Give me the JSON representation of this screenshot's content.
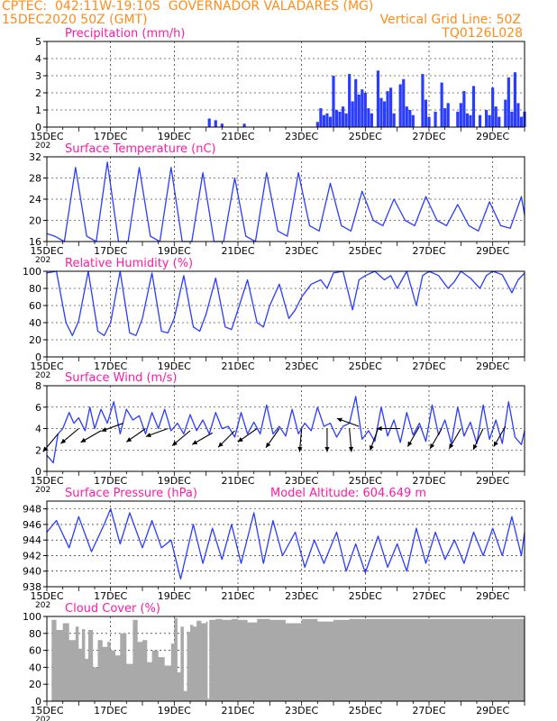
{
  "header": {
    "line1": "CPTEC:  042:11W-19:10S  GOVERNADOR VALADARES (MG)",
    "line2": "15DEC2020 50Z (GMT)",
    "grid_note": "Vertical Grid Line: 50Z",
    "code": "TQ0126L028"
  },
  "colors": {
    "header": "#ff8c1a",
    "panel_title": "#ff1aa6",
    "series": "#2a3cff",
    "cloud_fill": "#a9a9a9",
    "axis": "#000000",
    "grid": "#000000"
  },
  "x_axis": {
    "start_date": "15DEC",
    "ticks": [
      "15DEC",
      "17DEC",
      "19DEC",
      "21DEC",
      "23DEC",
      "25DEC",
      "27DEC",
      "29DEC"
    ],
    "tick_under": "202"
  },
  "chart_data": [
    {
      "id": "precip",
      "type": "bar",
      "title": "Precipitation (mm/h)",
      "ylim": [
        0,
        5
      ],
      "yticks": [
        0,
        1,
        2,
        3,
        4,
        5
      ],
      "series": [
        {
          "values": [
            [
              5.1,
              0.5
            ],
            [
              5.3,
              0.4
            ],
            [
              5.5,
              0.2
            ],
            [
              6.2,
              0.2
            ],
            [
              8.5,
              0.3
            ],
            [
              8.6,
              1.1
            ],
            [
              8.7,
              0.7
            ],
            [
              8.8,
              0.8
            ],
            [
              8.9,
              0.6
            ],
            [
              9.0,
              3.0
            ],
            [
              9.1,
              1.0
            ],
            [
              9.2,
              0.9
            ],
            [
              9.3,
              1.2
            ],
            [
              9.4,
              0.8
            ],
            [
              9.5,
              3.1
            ],
            [
              9.6,
              1.5
            ],
            [
              9.7,
              2.8
            ],
            [
              9.8,
              1.9
            ],
            [
              9.9,
              2.2
            ],
            [
              10.0,
              2.0
            ],
            [
              10.1,
              1.1
            ],
            [
              10.2,
              0.8
            ],
            [
              10.4,
              3.3
            ],
            [
              10.5,
              1.7
            ],
            [
              10.6,
              1.5
            ],
            [
              10.7,
              2.1
            ],
            [
              10.8,
              2.3
            ],
            [
              10.9,
              0.8
            ],
            [
              11.1,
              2.5
            ],
            [
              11.2,
              2.8
            ],
            [
              11.3,
              1.2
            ],
            [
              11.4,
              1.0
            ],
            [
              11.5,
              0.7
            ],
            [
              11.8,
              3.1
            ],
            [
              11.9,
              1.6
            ],
            [
              12.0,
              0.6
            ],
            [
              12.2,
              0.9
            ],
            [
              12.4,
              2.6
            ],
            [
              12.5,
              1.1
            ],
            [
              12.6,
              1.4
            ],
            [
              12.9,
              0.9
            ],
            [
              13.0,
              1.4
            ],
            [
              13.1,
              2.1
            ],
            [
              13.2,
              0.8
            ],
            [
              13.3,
              0.7
            ],
            [
              13.4,
              2.4
            ],
            [
              13.6,
              0.7
            ],
            [
              13.8,
              1.0
            ],
            [
              13.9,
              0.7
            ],
            [
              14.0,
              2.3
            ],
            [
              14.1,
              1.2
            ],
            [
              14.2,
              0.6
            ],
            [
              14.4,
              1.6
            ],
            [
              14.5,
              2.9
            ],
            [
              14.6,
              0.9
            ],
            [
              14.7,
              3.2
            ],
            [
              14.8,
              1.4
            ],
            [
              14.9,
              0.6
            ],
            [
              15.0,
              0.9
            ]
          ]
        }
      ]
    },
    {
      "id": "temp",
      "type": "line",
      "title": "Surface Temperature (nC)",
      "ylim": [
        16,
        32
      ],
      "yticks": [
        16,
        20,
        24,
        28,
        32
      ],
      "series": [
        {
          "days": [
            0,
            0.25,
            0.55,
            0.9,
            1.25,
            1.55,
            1.9,
            2.25,
            2.55,
            2.9,
            3.25,
            3.55,
            3.9,
            4.25,
            4.55,
            4.9,
            5.25,
            5.55,
            5.9,
            6.25,
            6.55,
            6.9,
            7.25,
            7.55,
            7.9,
            8.25,
            8.55,
            8.9,
            9.25,
            9.55,
            9.9,
            10.25,
            10.55,
            10.9,
            11.25,
            11.55,
            11.9,
            12.25,
            12.55,
            12.9,
            13.25,
            13.55,
            13.9,
            14.25,
            14.55,
            14.9,
            15.0
          ],
          "values": [
            17.5,
            17,
            16,
            30,
            17,
            16,
            31,
            16,
            16,
            30,
            17,
            16,
            30,
            16,
            16,
            29,
            16,
            16,
            28,
            17,
            16,
            29,
            18,
            17,
            29,
            19,
            18,
            27,
            19,
            18,
            25.5,
            20,
            19,
            24,
            20,
            19,
            24.5,
            20,
            19,
            23,
            19,
            18,
            23.5,
            19,
            18.5,
            24.5,
            21
          ]
        }
      ]
    },
    {
      "id": "humidity",
      "type": "line",
      "title": "Relative Humidity (%)",
      "ylim": [
        0,
        100
      ],
      "yticks": [
        0,
        20,
        40,
        60,
        80,
        100
      ],
      "series": [
        {
          "days": [
            0,
            0.3,
            0.6,
            0.8,
            1.0,
            1.3,
            1.6,
            1.8,
            2.0,
            2.3,
            2.6,
            2.8,
            3.0,
            3.3,
            3.6,
            3.8,
            4.0,
            4.3,
            4.6,
            4.8,
            5.0,
            5.3,
            5.6,
            5.8,
            6.0,
            6.3,
            6.6,
            6.8,
            7.0,
            7.3,
            7.6,
            7.8,
            8.0,
            8.3,
            8.6,
            8.8,
            9.0,
            9.3,
            9.6,
            9.8,
            10.0,
            10.3,
            10.6,
            10.8,
            11.0,
            11.3,
            11.6,
            11.8,
            12.0,
            12.3,
            12.6,
            12.8,
            13.0,
            13.3,
            13.6,
            13.8,
            14.0,
            14.3,
            14.6,
            14.8,
            15.0
          ],
          "values": [
            98,
            100,
            40,
            25,
            42,
            100,
            30,
            25,
            40,
            100,
            28,
            25,
            45,
            98,
            30,
            28,
            45,
            95,
            35,
            30,
            50,
            92,
            35,
            32,
            55,
            90,
            40,
            35,
            60,
            85,
            45,
            55,
            70,
            85,
            90,
            80,
            98,
            100,
            55,
            90,
            95,
            100,
            90,
            95,
            80,
            100,
            60,
            95,
            100,
            95,
            80,
            88,
            100,
            92,
            80,
            95,
            100,
            96,
            75,
            90,
            98
          ]
        }
      ]
    },
    {
      "id": "wind",
      "type": "line",
      "title": "Surface Wind (m/s)",
      "ylim": [
        0,
        8
      ],
      "yticks": [
        0,
        2,
        4,
        6,
        8
      ],
      "series": [
        {
          "days": [
            0,
            0.2,
            0.35,
            0.5,
            0.7,
            0.85,
            1.0,
            1.2,
            1.35,
            1.5,
            1.7,
            1.9,
            2.1,
            2.3,
            2.5,
            2.7,
            2.9,
            3.1,
            3.3,
            3.5,
            3.7,
            3.9,
            4.1,
            4.3,
            4.5,
            4.7,
            4.9,
            5.1,
            5.3,
            5.5,
            5.7,
            5.9,
            6.1,
            6.3,
            6.5,
            6.7,
            6.9,
            7.1,
            7.3,
            7.5,
            7.7,
            7.9,
            8.1,
            8.3,
            8.5,
            8.7,
            8.9,
            9.1,
            9.3,
            9.5,
            9.7,
            9.9,
            10.1,
            10.3,
            10.5,
            10.7,
            10.9,
            11.1,
            11.3,
            11.5,
            11.7,
            11.9,
            12.1,
            12.3,
            12.5,
            12.7,
            12.9,
            13.1,
            13.3,
            13.5,
            13.7,
            13.9,
            14.1,
            14.3,
            14.5,
            14.7,
            14.9,
            15.0
          ],
          "values": [
            1.5,
            0.8,
            3.5,
            4,
            5.5,
            4.5,
            5,
            3.8,
            6,
            4,
            5.8,
            4.5,
            6.5,
            3.5,
            5.8,
            4.8,
            5.2,
            3.5,
            5.5,
            4,
            5.8,
            3.8,
            4.5,
            3.5,
            5.3,
            3.8,
            4.8,
            3.5,
            5.5,
            4,
            4.2,
            3.2,
            5.5,
            3.5,
            4.6,
            3.5,
            6.2,
            3.5,
            4.2,
            3.3,
            5.8,
            3.5,
            4.5,
            3.8,
            6,
            4.2,
            4.5,
            3.2,
            4.2,
            4.5,
            7,
            3,
            3.8,
            2.8,
            6,
            3.3,
            4.8,
            2.7,
            5.5,
            3.4,
            4.5,
            2.8,
            6.2,
            3.4,
            4.8,
            2.6,
            6,
            3.3,
            4.6,
            2.6,
            6.2,
            3,
            4.8,
            2.6,
            6.5,
            3.2,
            2.5,
            3.8
          ]
        }
      ],
      "vectors": [
        {
          "day": 0.35,
          "mag": 3.5,
          "dir": 220
        },
        {
          "day": 1.0,
          "mag": 4.0,
          "dir": 230
        },
        {
          "day": 1.7,
          "mag": 3.8,
          "dir": 240
        },
        {
          "day": 2.4,
          "mag": 4.5,
          "dir": 250
        },
        {
          "day": 3.1,
          "mag": 4.0,
          "dir": 235
        },
        {
          "day": 3.8,
          "mag": 4.0,
          "dir": 250
        },
        {
          "day": 4.5,
          "mag": 3.8,
          "dir": 230
        },
        {
          "day": 5.2,
          "mag": 3.6,
          "dir": 240
        },
        {
          "day": 5.9,
          "mag": 3.8,
          "dir": 225
        },
        {
          "day": 6.6,
          "mag": 4.0,
          "dir": 235
        },
        {
          "day": 7.3,
          "mag": 4.0,
          "dir": 215
        },
        {
          "day": 8.0,
          "mag": 4.0,
          "dir": 185
        },
        {
          "day": 8.8,
          "mag": 4.0,
          "dir": 180
        },
        {
          "day": 9.5,
          "mag": 4.0,
          "dir": 175
        },
        {
          "day": 9.8,
          "mag": 4.2,
          "dir": 290
        },
        {
          "day": 10.4,
          "mag": 4.0,
          "dir": 200
        },
        {
          "day": 11.1,
          "mag": 4.0,
          "dir": 270
        },
        {
          "day": 11.7,
          "mag": 4.2,
          "dir": 210
        },
        {
          "day": 12.4,
          "mag": 4.0,
          "dir": 210
        },
        {
          "day": 13.0,
          "mag": 4.0,
          "dir": 210
        },
        {
          "day": 13.7,
          "mag": 4.0,
          "dir": 205
        },
        {
          "day": 14.4,
          "mag": 4.2,
          "dir": 210
        }
      ]
    },
    {
      "id": "pressure",
      "type": "line",
      "title": "Surface Pressure (hPa)",
      "subtitle": "Model Altitude: 604.649  m",
      "ylim": [
        938,
        949
      ],
      "yticks": [
        938,
        940,
        942,
        944,
        946,
        948
      ],
      "series": [
        {
          "days": [
            0,
            0.3,
            0.7,
            1.0,
            1.4,
            1.8,
            2.0,
            2.3,
            2.6,
            3.0,
            3.3,
            3.6,
            3.9,
            4.2,
            4.6,
            4.9,
            5.2,
            5.5,
            5.8,
            6.1,
            6.5,
            6.8,
            7.1,
            7.4,
            7.8,
            8.1,
            8.4,
            8.7,
            9.1,
            9.4,
            9.7,
            10.0,
            10.4,
            10.7,
            11.0,
            11.3,
            11.6,
            11.9,
            12.2,
            12.5,
            12.8,
            13.1,
            13.4,
            13.7,
            14.0,
            14.3,
            14.6,
            14.9,
            15.0
          ],
          "values": [
            945,
            946.5,
            943,
            947,
            942.5,
            946,
            948,
            943.5,
            947.5,
            943,
            946.5,
            943,
            944,
            939,
            946,
            941,
            945.5,
            941.5,
            946,
            941,
            947.5,
            941,
            946.5,
            942,
            945,
            940.5,
            944,
            941,
            945,
            940,
            943.5,
            939.8,
            944.5,
            940.5,
            943.5,
            940,
            945.5,
            941,
            945,
            941.5,
            944,
            941,
            945,
            942,
            945.5,
            942,
            947,
            942,
            945
          ]
        }
      ]
    },
    {
      "id": "cloud",
      "type": "area",
      "title": "Cloud Cover (%)",
      "ylim": [
        0,
        100
      ],
      "yticks": [
        0,
        20,
        40,
        60,
        80,
        100
      ],
      "series": [
        {
          "days": [
            0.15,
            0.3,
            0.5,
            0.7,
            0.9,
            1.0,
            1.1,
            1.2,
            1.3,
            1.45,
            1.6,
            1.75,
            1.9,
            2.0,
            2.15,
            2.3,
            2.5,
            2.7,
            2.85,
            3.0,
            3.15,
            3.3,
            3.5,
            3.7,
            3.9,
            4.0,
            4.1,
            4.2,
            4.3,
            4.4,
            4.5,
            4.6,
            4.7,
            4.85,
            5.0,
            5.05,
            5.1,
            5.3,
            5.5,
            5.8,
            6.0,
            6.3,
            6.6,
            7.0,
            7.5,
            8.0,
            8.5,
            9.0,
            9.5,
            10.0,
            11.0,
            12.0,
            13.0,
            14.0,
            15.0
          ],
          "values": [
            96,
            84,
            92,
            72,
            88,
            62,
            85,
            50,
            84,
            40,
            72,
            64,
            70,
            60,
            54,
            80,
            44,
            96,
            70,
            72,
            46,
            60,
            52,
            42,
            68,
            98,
            34,
            88,
            12,
            82,
            90,
            88,
            95,
            92,
            94,
            3,
            96,
            97,
            96,
            97,
            96,
            93,
            97,
            96,
            92,
            97,
            94,
            96,
            97,
            97,
            97,
            97,
            97,
            97,
            97
          ]
        }
      ]
    }
  ]
}
